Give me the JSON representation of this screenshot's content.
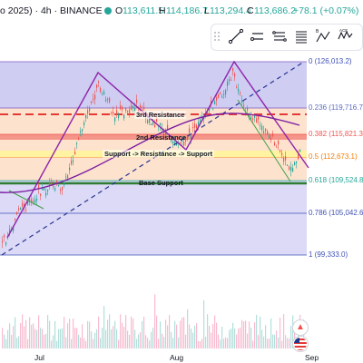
{
  "header": {
    "title_fragment": "o 2025) · 4h · BINANCE",
    "ohlc": {
      "o_label": "O",
      "o": "113,611.5",
      "h_label": "H",
      "h": "114,186.7",
      "l_label": "L",
      "l": "113,294.4",
      "c_label": "C",
      "c": "113,686.2",
      "change": "+78.1 (+0.07%)"
    }
  },
  "toolbar": {
    "icons": [
      "trend-line-icon",
      "horizontal-lines-icon",
      "parallel-channel-icon",
      "fib-levels-icon",
      "abc-pattern-icon",
      "abcde-pattern-icon"
    ]
  },
  "fib_levels": [
    {
      "label": "0 (126,013.2)"
    },
    {
      "label": "0.236 (119,716.7)"
    },
    {
      "label": "0.382 (115,821.3)"
    },
    {
      "label": "0.5 (112,673.1)"
    },
    {
      "label": "0.618 (109,524.8)"
    },
    {
      "label": "0.786 (105,042.6)"
    },
    {
      "label": "1 (99,333.0)"
    }
  ],
  "annotations": {
    "third_resistance": "3rd Resistance",
    "second_resistance": "2nd Resistance",
    "support_resistance": "Support -> Resistance -> Support",
    "base_support": "Base Support"
  },
  "x_axis": {
    "labels": [
      "Jul",
      "Aug",
      "Sep"
    ]
  },
  "colors": {
    "fib_band_top": "#a9a7e6",
    "fib_band_mid": "#f8c9a7",
    "up": "#26a69a",
    "down": "#ef5350",
    "pattern": "#9c27b0"
  }
}
